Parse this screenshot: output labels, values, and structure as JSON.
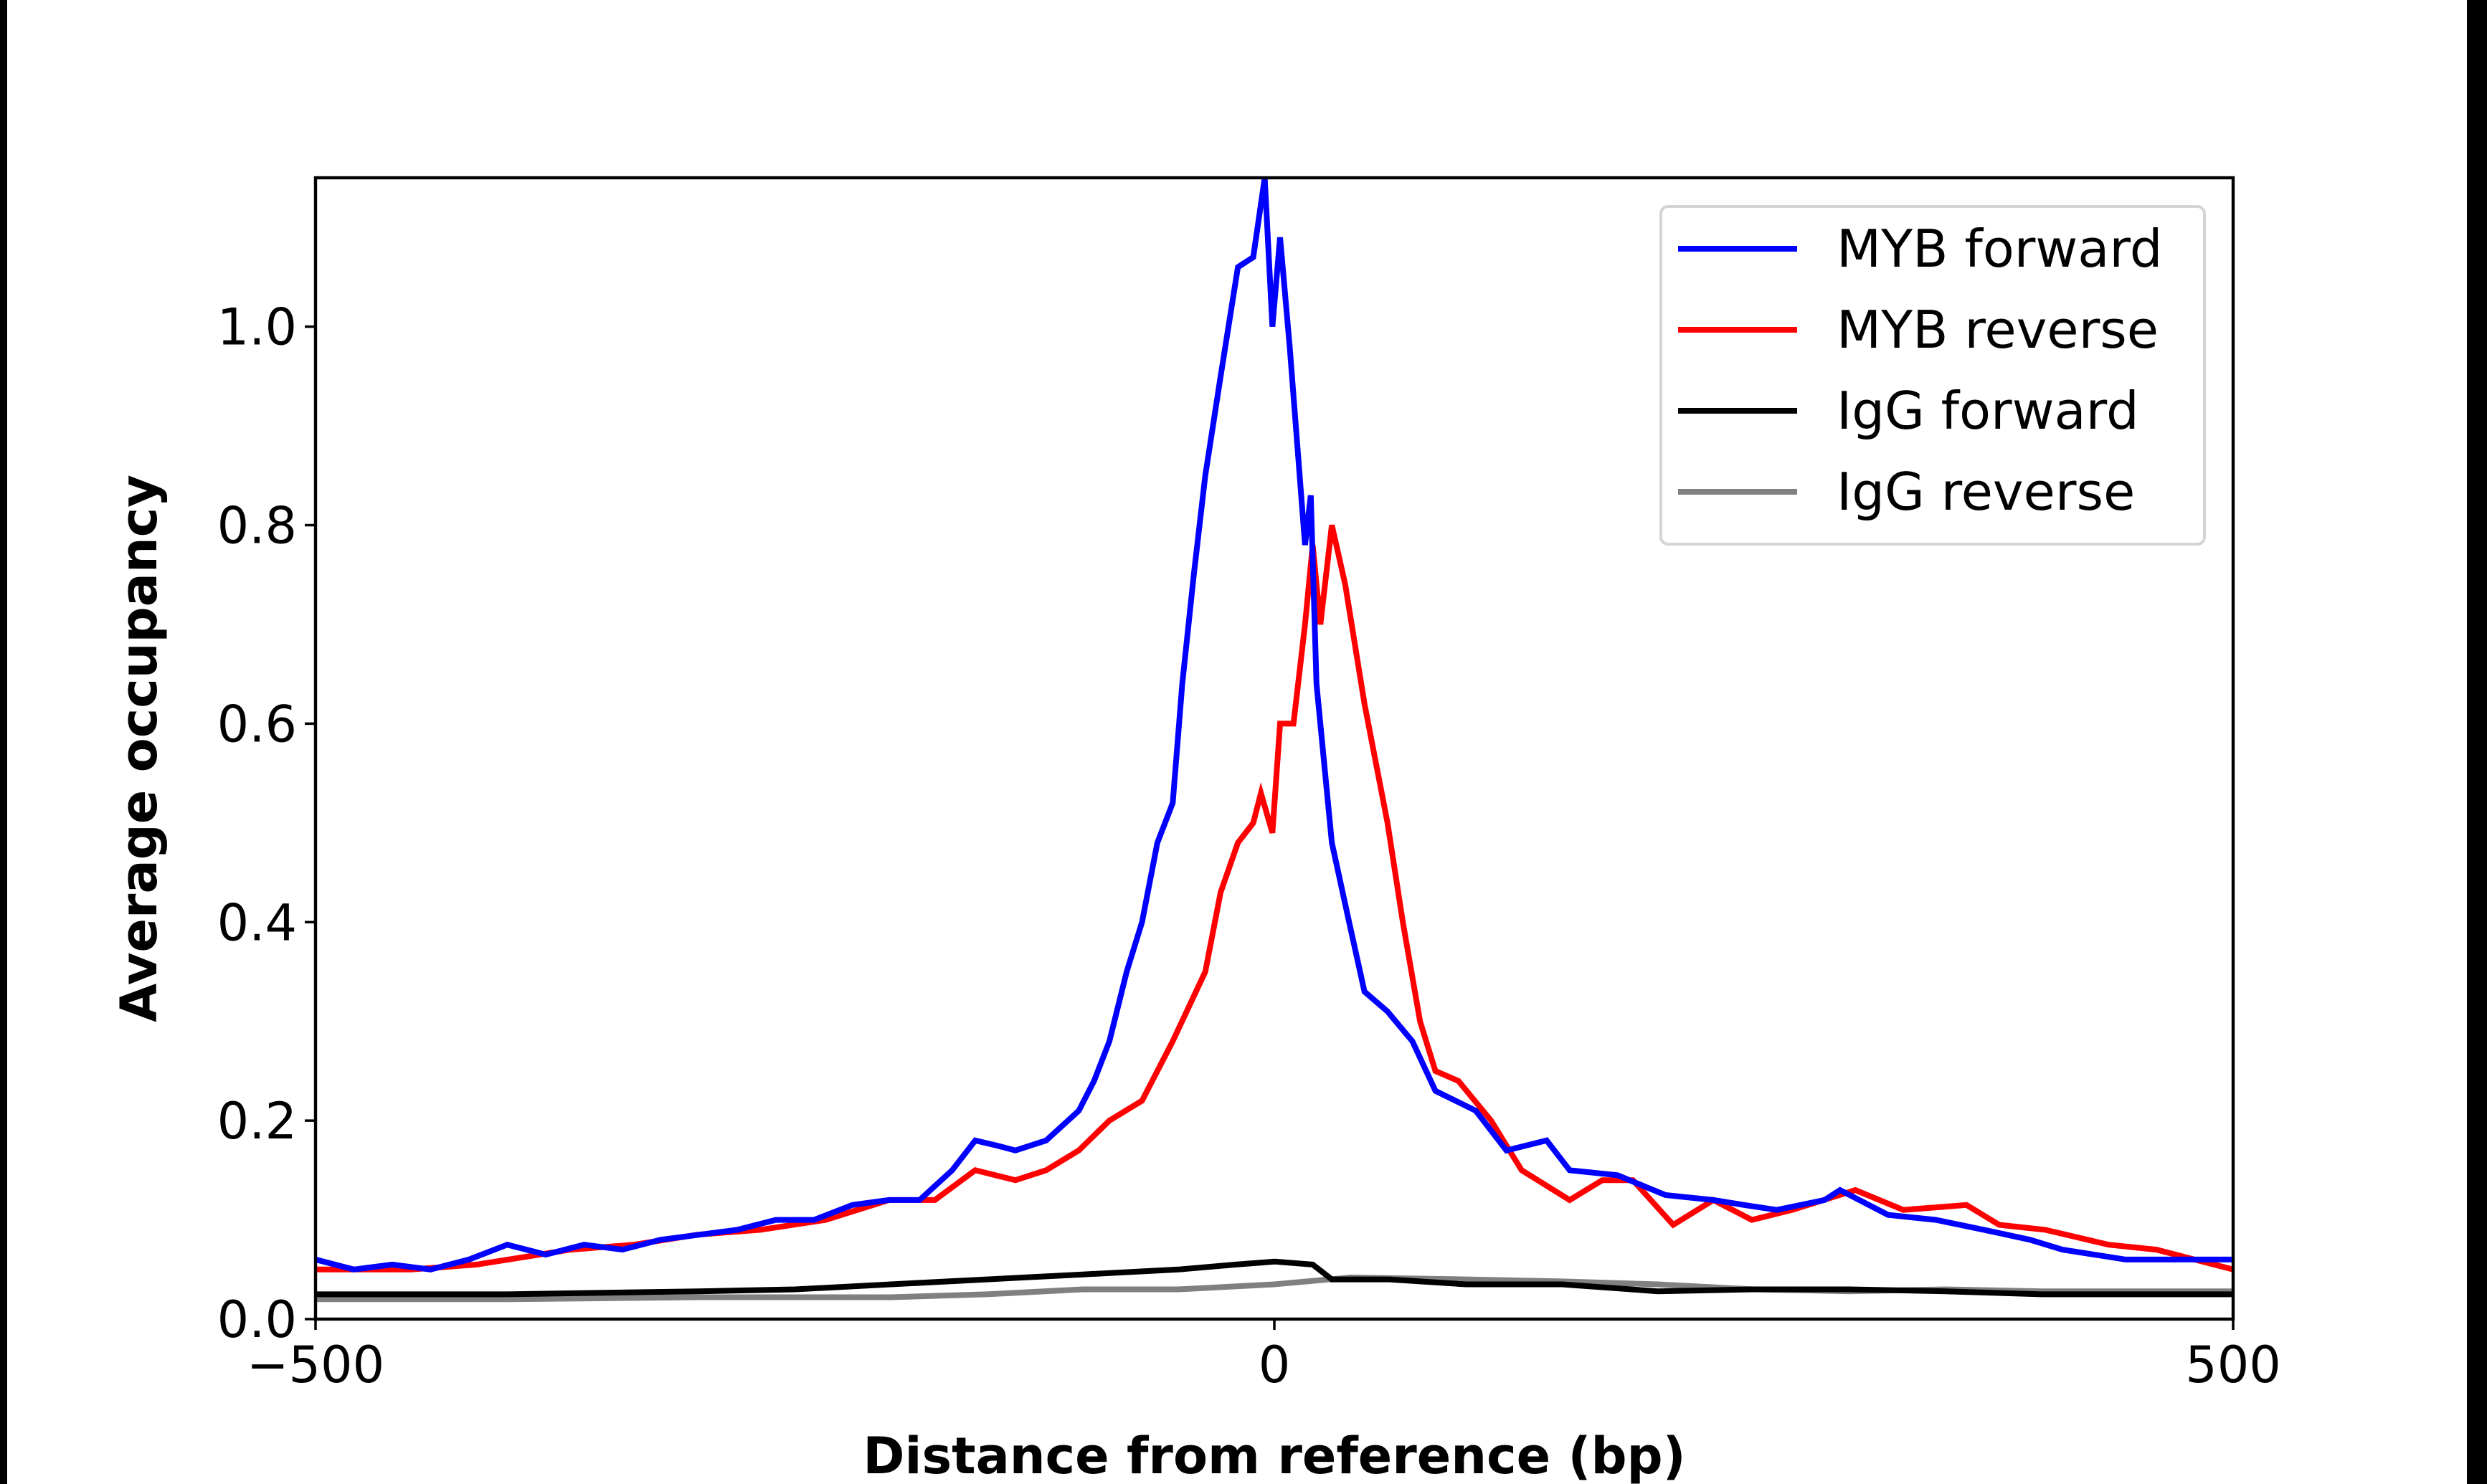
{
  "chart_data": {
    "type": "line",
    "title": "",
    "xlabel": "Distance from reference (bp)",
    "ylabel": "Average occupancy",
    "xlim": [
      -500,
      500
    ],
    "ylim": [
      0,
      1.15
    ],
    "xticks": [
      -500,
      0,
      500
    ],
    "xtick_labels": [
      "−500",
      "0",
      "500"
    ],
    "yticks": [
      0.0,
      0.2,
      0.4,
      0.6,
      0.8,
      1.0
    ],
    "ytick_labels": [
      "0.0",
      "0.2",
      "0.4",
      "0.6",
      "0.8",
      "1.0"
    ],
    "grid": false,
    "legend_position": "top-right",
    "series": [
      {
        "name": "MYB forward",
        "color": "#0000ff",
        "x": [
          -500,
          -480,
          -460,
          -440,
          -420,
          -400,
          -380,
          -360,
          -340,
          -320,
          -300,
          -280,
          -260,
          -240,
          -220,
          -201,
          -185,
          -168,
          -156,
          -145,
          -135,
          -119,
          -102,
          -94,
          -86,
          -77,
          -69,
          -61,
          -53,
          -48,
          -42,
          -36,
          -28,
          -19,
          -11,
          -5,
          -1,
          3,
          8,
          12,
          16,
          19,
          22,
          30,
          39,
          47,
          59,
          72,
          84,
          105,
          121,
          142,
          154,
          179,
          204,
          229,
          245,
          262,
          287,
          295,
          320,
          345,
          370,
          394,
          411,
          444,
          477,
          500
        ],
        "y": [
          0.06,
          0.05,
          0.055,
          0.05,
          0.06,
          0.075,
          0.065,
          0.075,
          0.07,
          0.08,
          0.085,
          0.09,
          0.1,
          0.1,
          0.115,
          0.12,
          0.12,
          0.15,
          0.18,
          0.175,
          0.17,
          0.18,
          0.21,
          0.24,
          0.28,
          0.35,
          0.4,
          0.48,
          0.52,
          0.64,
          0.75,
          0.85,
          0.95,
          1.06,
          1.07,
          1.15,
          1.0,
          1.09,
          0.98,
          0.88,
          0.78,
          0.83,
          0.64,
          0.48,
          0.4,
          0.33,
          0.31,
          0.28,
          0.23,
          0.21,
          0.17,
          0.18,
          0.15,
          0.145,
          0.125,
          0.12,
          0.115,
          0.11,
          0.12,
          0.13,
          0.105,
          0.1,
          0.09,
          0.08,
          0.07,
          0.06,
          0.06,
          0.06
        ]
      },
      {
        "name": "MYB reverse",
        "color": "#ff0000",
        "x": [
          -500,
          -450,
          -416,
          -367,
          -334,
          -301,
          -268,
          -234,
          -201,
          -177,
          -156,
          -135,
          -119,
          -102,
          -86,
          -69,
          -53,
          -36,
          -28,
          -19,
          -11,
          -7,
          -1,
          3,
          10,
          16,
          20,
          24,
          30,
          37,
          47,
          59,
          67,
          76,
          84,
          96,
          113,
          129,
          154,
          171,
          187,
          208,
          229,
          249,
          270,
          303,
          328,
          361,
          378,
          402,
          435,
          460,
          500
        ],
        "y": [
          0.05,
          0.05,
          0.055,
          0.07,
          0.075,
          0.085,
          0.09,
          0.1,
          0.12,
          0.12,
          0.15,
          0.14,
          0.15,
          0.17,
          0.2,
          0.22,
          0.28,
          0.35,
          0.43,
          0.48,
          0.5,
          0.53,
          0.49,
          0.6,
          0.6,
          0.7,
          0.78,
          0.7,
          0.8,
          0.74,
          0.62,
          0.5,
          0.4,
          0.3,
          0.25,
          0.24,
          0.2,
          0.15,
          0.12,
          0.14,
          0.14,
          0.095,
          0.12,
          0.1,
          0.11,
          0.13,
          0.11,
          0.115,
          0.095,
          0.09,
          0.075,
          0.07,
          0.05
        ]
      },
      {
        "name": "IgG forward",
        "color": "#000000",
        "x": [
          -500,
          -400,
          -300,
          -250,
          -200,
          -150,
          -100,
          -50,
          -20,
          0,
          20,
          30,
          60,
          100,
          150,
          200,
          250,
          300,
          350,
          400,
          450,
          500
        ],
        "y": [
          0.025,
          0.025,
          0.028,
          0.03,
          0.035,
          0.04,
          0.045,
          0.05,
          0.055,
          0.058,
          0.055,
          0.04,
          0.04,
          0.035,
          0.035,
          0.028,
          0.03,
          0.03,
          0.028,
          0.025,
          0.025,
          0.025
        ]
      },
      {
        "name": "IgG reverse",
        "color": "#808080",
        "x": [
          -500,
          -400,
          -300,
          -200,
          -150,
          -100,
          -50,
          0,
          40,
          100,
          150,
          200,
          250,
          300,
          350,
          400,
          450,
          500
        ],
        "y": [
          0.02,
          0.02,
          0.022,
          0.022,
          0.025,
          0.03,
          0.03,
          0.035,
          0.042,
          0.04,
          0.038,
          0.035,
          0.03,
          0.028,
          0.03,
          0.028,
          0.028,
          0.028
        ]
      }
    ]
  }
}
